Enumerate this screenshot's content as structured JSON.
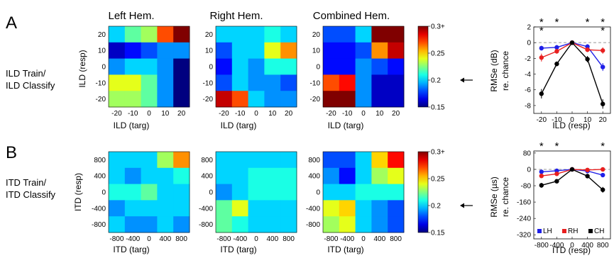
{
  "panels": {
    "A": {
      "letter": "A",
      "row_label": [
        "ILD Train/",
        "ILD Classify"
      ],
      "heatmaps": {
        "titles": [
          "Left Hem.",
          "Right Hem.",
          "Combined Hem."
        ],
        "xlabel": "ILD (targ)",
        "ylabel": "ILD (resp)",
        "xticks": [
          "-20",
          "-10",
          "0",
          "10",
          "20"
        ],
        "yticks": [
          "20",
          "10",
          "0",
          "-10",
          "-20"
        ]
      },
      "colorbar": {
        "ticks": [
          "0.3+",
          "0.25",
          "0.2",
          "0.15"
        ]
      },
      "line": {
        "ylabel_1": "RMSe (dB)",
        "ylabel_2": "re. chance",
        "xlabel": "ILD (resp)",
        "xticks": [
          "-20",
          "-10",
          "0",
          "10",
          "20"
        ],
        "yticks": [
          "2",
          "0",
          "-2",
          "-4",
          "-6",
          "-8"
        ]
      }
    },
    "B": {
      "letter": "B",
      "row_label": [
        "ITD Train/",
        "ITD Classify"
      ],
      "heatmaps": {
        "xlabel": "ITD (targ)",
        "ylabel": "ITD (resp)",
        "xticks": [
          "-800",
          "-400",
          "0",
          "400",
          "800"
        ],
        "yticks": [
          "800",
          "400",
          "0",
          "-400",
          "-800"
        ]
      },
      "colorbar": {
        "ticks": [
          "0.3+",
          "0.25",
          "0.2",
          "0.15"
        ]
      },
      "line": {
        "ylabel_1": "RMSe (µs)",
        "ylabel_2": "re. chance",
        "xlabel": "ITD (resp)",
        "xticks": [
          "-800",
          "-400",
          "0",
          "400",
          "800"
        ],
        "yticks": [
          "80",
          "0",
          "-80",
          "-160",
          "-240",
          "-320"
        ],
        "legend": [
          "LH",
          "RH",
          "CH"
        ]
      }
    }
  },
  "colors": {
    "LH": "#1f1fe8",
    "RH": "#e81f1f",
    "CH": "#000000"
  },
  "chart_data": [
    {
      "type": "heatmap",
      "name": "A-left",
      "title": "Left Hem.",
      "xlabel": "ILD (targ)",
      "ylabel": "ILD (resp)",
      "x": [
        -20,
        -10,
        0,
        10,
        20
      ],
      "y": [
        20,
        10,
        0,
        -10,
        -20
      ],
      "vmin": 0.15,
      "vmax": 0.3,
      "z": [
        [
          0.2,
          0.22,
          0.23,
          0.27,
          0.3
        ],
        [
          0.16,
          0.17,
          0.18,
          0.19,
          0.19
        ],
        [
          0.19,
          0.2,
          0.2,
          0.19,
          0.15
        ],
        [
          0.24,
          0.24,
          0.22,
          0.19,
          0.15
        ],
        [
          0.23,
          0.23,
          0.22,
          0.19,
          0.15
        ]
      ]
    },
    {
      "type": "heatmap",
      "name": "A-right",
      "title": "Right Hem.",
      "xlabel": "ILD (targ)",
      "ylabel": "ILD (resp)",
      "x": [
        -20,
        -10,
        0,
        10,
        20
      ],
      "y": [
        20,
        10,
        0,
        -10,
        -20
      ],
      "vmin": 0.15,
      "vmax": 0.3,
      "z": [
        [
          0.2,
          0.2,
          0.2,
          0.21,
          0.2
        ],
        [
          0.18,
          0.2,
          0.2,
          0.24,
          0.26
        ],
        [
          0.17,
          0.2,
          0.19,
          0.21,
          0.21
        ],
        [
          0.18,
          0.2,
          0.19,
          0.19,
          0.18
        ],
        [
          0.29,
          0.27,
          0.2,
          0.19,
          0.19
        ]
      ]
    },
    {
      "type": "heatmap",
      "name": "A-combined",
      "title": "Combined Hem.",
      "xlabel": "ILD (targ)",
      "ylabel": "ILD (resp)",
      "x": [
        -20,
        -10,
        0,
        10,
        20
      ],
      "y": [
        20,
        10,
        0,
        -10,
        -20
      ],
      "vmin": 0.15,
      "vmax": 0.3,
      "z": [
        [
          0.18,
          0.18,
          0.2,
          0.3,
          0.3
        ],
        [
          0.17,
          0.17,
          0.18,
          0.26,
          0.29
        ],
        [
          0.17,
          0.17,
          0.19,
          0.18,
          0.17
        ],
        [
          0.27,
          0.28,
          0.19,
          0.16,
          0.16
        ],
        [
          0.3,
          0.3,
          0.19,
          0.16,
          0.16
        ]
      ]
    },
    {
      "type": "heatmap",
      "name": "B-left",
      "xlabel": "ITD (targ)",
      "ylabel": "ITD (resp)",
      "x": [
        -800,
        -400,
        0,
        400,
        800
      ],
      "y": [
        800,
        400,
        0,
        -400,
        -800
      ],
      "vmin": 0.15,
      "vmax": 0.3,
      "z": [
        [
          0.2,
          0.2,
          0.2,
          0.23,
          0.26
        ],
        [
          0.2,
          0.19,
          0.2,
          0.2,
          0.21
        ],
        [
          0.21,
          0.21,
          0.22,
          0.2,
          0.2
        ],
        [
          0.19,
          0.2,
          0.2,
          0.2,
          0.2
        ],
        [
          0.2,
          0.19,
          0.19,
          0.2,
          0.19
        ]
      ]
    },
    {
      "type": "heatmap",
      "name": "B-right",
      "xlabel": "ITD (targ)",
      "ylabel": "ITD (resp)",
      "x": [
        -800,
        -400,
        0,
        400,
        800
      ],
      "y": [
        800,
        400,
        0,
        -400,
        -800
      ],
      "vmin": 0.15,
      "vmax": 0.3,
      "z": [
        [
          0.2,
          0.2,
          0.2,
          0.2,
          0.2
        ],
        [
          0.2,
          0.2,
          0.21,
          0.21,
          0.21
        ],
        [
          0.19,
          0.2,
          0.21,
          0.21,
          0.21
        ],
        [
          0.22,
          0.24,
          0.2,
          0.2,
          0.2
        ],
        [
          0.22,
          0.21,
          0.2,
          0.2,
          0.2
        ]
      ]
    },
    {
      "type": "heatmap",
      "name": "B-combined",
      "xlabel": "ITD (targ)",
      "ylabel": "ITD (resp)",
      "x": [
        -800,
        -400,
        0,
        400,
        800
      ],
      "y": [
        800,
        400,
        0,
        -400,
        -800
      ],
      "vmin": 0.15,
      "vmax": 0.3,
      "z": [
        [
          0.18,
          0.18,
          0.2,
          0.25,
          0.28
        ],
        [
          0.19,
          0.17,
          0.2,
          0.23,
          0.24
        ],
        [
          0.2,
          0.2,
          0.21,
          0.21,
          0.21
        ],
        [
          0.24,
          0.25,
          0.2,
          0.19,
          0.18
        ],
        [
          0.23,
          0.24,
          0.2,
          0.19,
          0.18
        ]
      ]
    },
    {
      "type": "line",
      "name": "A-line",
      "xlabel": "ILD (resp)",
      "ylabel": "RMSe (dB) re. chance",
      "x": [
        -20,
        -10,
        0,
        10,
        20
      ],
      "xlim": [
        -25,
        25
      ],
      "ylim": [
        -9,
        2
      ],
      "series": [
        {
          "key": "LH",
          "values": [
            -0.7,
            -0.6,
            0,
            -0.5,
            -3.1
          ],
          "err": [
            0.3,
            0.3,
            0.2,
            0.3,
            0.5
          ]
        },
        {
          "key": "RH",
          "values": [
            -1.9,
            -1.1,
            0,
            -0.9,
            -1.0
          ],
          "err": [
            0.5,
            0.3,
            0.2,
            0.3,
            0.4
          ]
        },
        {
          "key": "CH",
          "values": [
            -6.5,
            -2.7,
            0,
            -2.1,
            -7.8
          ],
          "err": [
            0.6,
            0.3,
            0.2,
            0.4,
            0.6
          ]
        }
      ],
      "significance": [
        {
          "x": -20,
          "marks": [
            "CH",
            "RH"
          ]
        },
        {
          "x": -10,
          "marks": [
            "CH"
          ]
        },
        {
          "x": 10,
          "marks": [
            "CH"
          ]
        },
        {
          "x": 20,
          "marks": [
            "CH",
            "LH"
          ]
        }
      ]
    },
    {
      "type": "line",
      "name": "B-line",
      "xlabel": "ITD (resp)",
      "ylabel": "RMSe (µs) re. chance",
      "x": [
        -800,
        -400,
        0,
        400,
        800
      ],
      "xlim": [
        -1000,
        1000
      ],
      "ylim": [
        -340,
        90
      ],
      "series": [
        {
          "key": "LH",
          "values": [
            -12,
            -7,
            0,
            -8,
            -28
          ],
          "err": [
            8,
            6,
            5,
            6,
            10
          ]
        },
        {
          "key": "RH",
          "values": [
            -32,
            -22,
            0,
            -3,
            0
          ],
          "err": [
            10,
            8,
            5,
            5,
            6
          ]
        },
        {
          "key": "CH",
          "values": [
            -78,
            -58,
            0,
            -33,
            -100
          ],
          "err": [
            12,
            10,
            5,
            10,
            14
          ]
        }
      ],
      "significance": [
        {
          "x": -800,
          "marks": [
            "CH"
          ]
        },
        {
          "x": -400,
          "marks": [
            "CH"
          ]
        },
        {
          "x": 800,
          "marks": [
            "CH"
          ]
        }
      ]
    }
  ]
}
